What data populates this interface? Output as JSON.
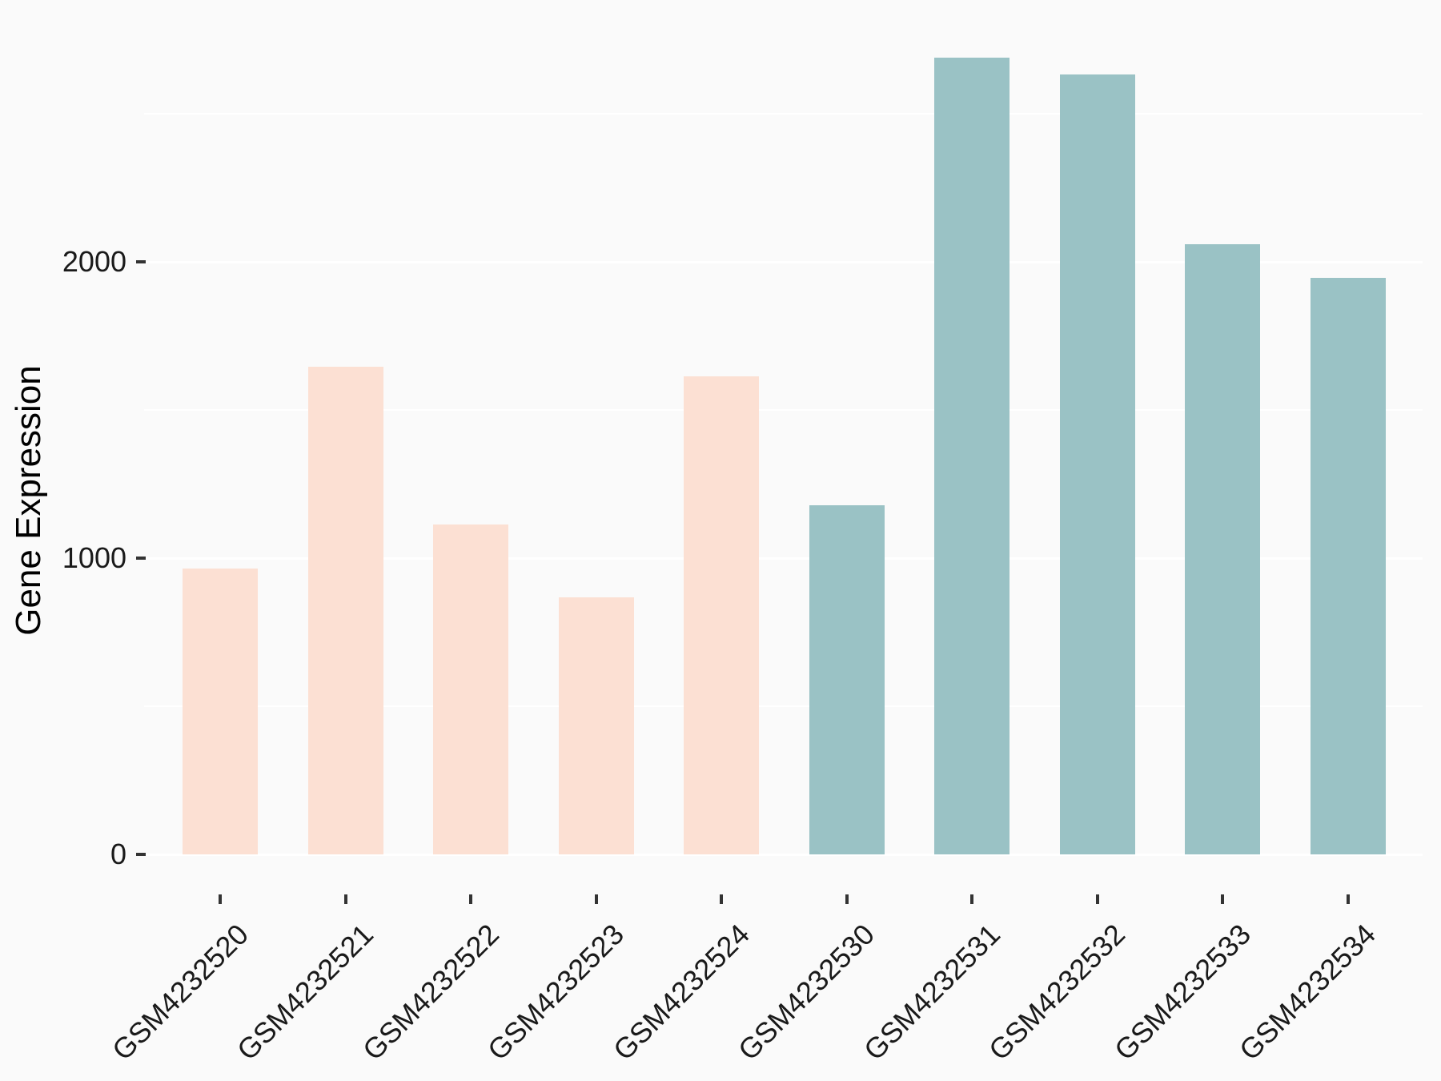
{
  "chart_data": {
    "type": "bar",
    "title": "",
    "xlabel": "",
    "ylabel": "Gene Expression",
    "categories": [
      "GSM4232520",
      "GSM4232521",
      "GSM4232522",
      "GSM4232523",
      "GSM4232524",
      "GSM4232530",
      "GSM4232531",
      "GSM4232532",
      "GSM4232533",
      "GSM4232534"
    ],
    "values": [
      965,
      1646,
      1114,
      868,
      1614,
      1178,
      2689,
      2632,
      2059,
      1946
    ],
    "bar_colors": [
      "#FCE0D3",
      "#FCE0D3",
      "#FCE0D3",
      "#FCE0D3",
      "#FCE0D3",
      "#9AC2C5",
      "#9AC2C5",
      "#9AC2C5",
      "#9AC2C5",
      "#9AC2C5"
    ],
    "groups": [
      {
        "name": "group-pink",
        "color": "#FCE0D3",
        "members": [
          "GSM4232520",
          "GSM4232521",
          "GSM4232522",
          "GSM4232523",
          "GSM4232524"
        ]
      },
      {
        "name": "group-teal",
        "color": "#9AC2C5",
        "members": [
          "GSM4232530",
          "GSM4232531",
          "GSM4232532",
          "GSM4232533",
          "GSM4232534"
        ]
      }
    ],
    "ylim": [
      0,
      2830
    ],
    "yticks": [
      {
        "label": "0",
        "value": 0
      },
      {
        "label": "1000",
        "value": 1000
      },
      {
        "label": "2000",
        "value": 2000
      }
    ],
    "minor_gridlines": [
      500,
      1500,
      2500
    ],
    "grid": "horizontal white major and minor gridlines on light gray panel",
    "legend_position": "none",
    "x_label_rotation_deg": 45
  },
  "style": {
    "background": "#FAFAFA",
    "gridline_color": "#FFFFFF",
    "tick_color": "#333333",
    "text_color": "#1A1A1A"
  }
}
